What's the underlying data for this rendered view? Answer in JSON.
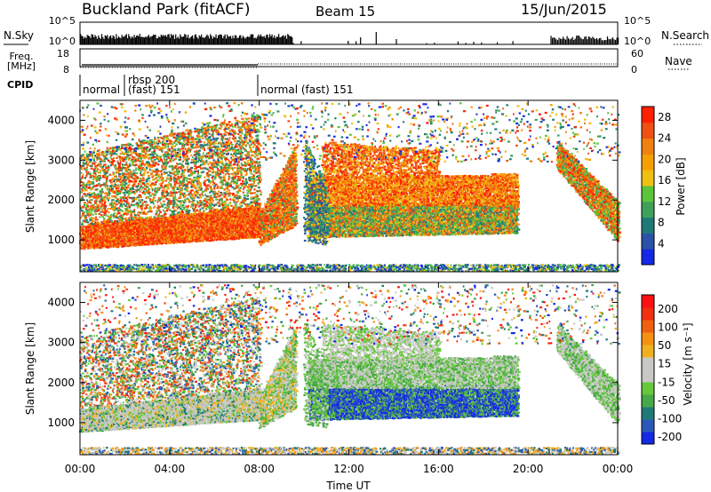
{
  "header": {
    "station": "Buckland Park (fitACF)",
    "beam": "Beam 15",
    "date": "15/Jun/2015"
  },
  "status_panel": {
    "nsky_label": "N.Sky",
    "nsky_ticks": [
      "10^5",
      "10^0"
    ],
    "nsearch_label": "N.Search",
    "nsearch_ticks": [
      "10^5",
      "10^0"
    ],
    "freq_label": "Freq.",
    "freq_unit": "[MHz]",
    "freq_ticks": [
      "18",
      "8"
    ],
    "nave_label": "Nave",
    "nave_ticks": [
      "60",
      "0"
    ],
    "cpid_label": "CPID",
    "cpid_segments": [
      {
        "label": "normal",
        "start_hour": 0.0
      },
      {
        "label": "rbsp 200",
        "label2": "(fast) 151",
        "start_hour": 1.95
      },
      {
        "label": "normal (fast)  151",
        "start_hour": 8.0
      }
    ]
  },
  "chart_data": [
    {
      "type": "heatmap",
      "name": "power",
      "ylabel": "Slant Range [km]",
      "yticks": [
        1000,
        2000,
        3000,
        4000
      ],
      "ylim": [
        200,
        4500
      ],
      "xlim": [
        0,
        24
      ],
      "colorbar": {
        "label": "Power [dB]",
        "ticks": [
          "4",
          "8",
          "12",
          "16",
          "20",
          "24",
          "28"
        ],
        "colors": [
          "#1428e6",
          "#2b51a8",
          "#1e7a78",
          "#3fa05a",
          "#5cc43a",
          "#f0c010",
          "#f5a000",
          "#f08010",
          "#f05010",
          "#ff2000"
        ]
      }
    },
    {
      "type": "heatmap",
      "name": "velocity",
      "ylabel": "Slant Range [km]",
      "yticks": [
        1000,
        2000,
        3000,
        4000
      ],
      "ylim": [
        200,
        4500
      ],
      "xlim": [
        0,
        24
      ],
      "xticks": [
        "00:00",
        "04:00",
        "08:00",
        "12:00",
        "16:00",
        "20:00",
        "00:00"
      ],
      "xlabel": "Time UT",
      "colorbar": {
        "label": "Velocity [m s⁻¹]",
        "ticks": [
          "200",
          "100",
          "50",
          "15",
          "-15",
          "-50",
          "-100",
          "-200"
        ],
        "colors": [
          "#1428e6",
          "#2a5ab8",
          "#1e7a78",
          "#46a848",
          "#64c83a",
          "#c8c8c4",
          "#c8c8c4",
          "#f0b020",
          "#f59010",
          "#f06010",
          "#f03010",
          "#ff1010"
        ]
      }
    }
  ]
}
